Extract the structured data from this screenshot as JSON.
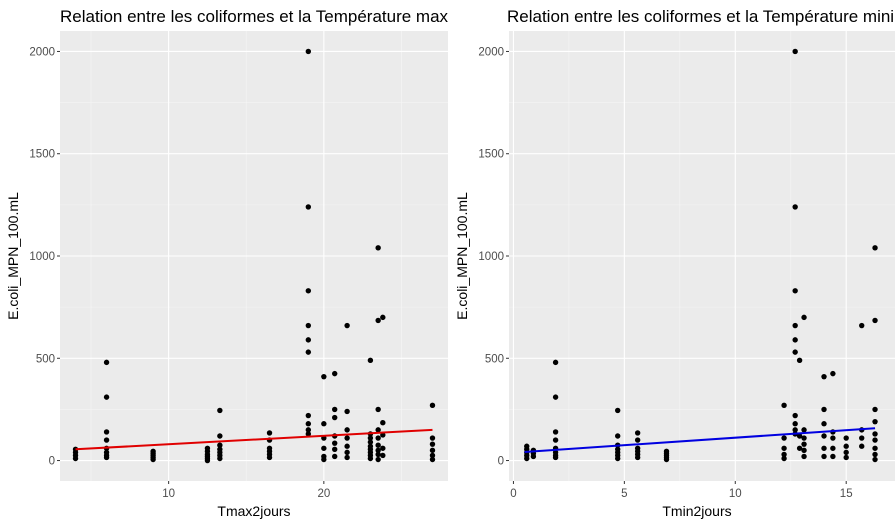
{
  "chart_data": [
    {
      "type": "scatter",
      "title": "Relation entre les coliformes et la Température maximale",
      "xlabel": "Tmax2jours",
      "ylabel": "E.coli_MPN_100.mL",
      "xlim": [
        3,
        28
      ],
      "ylim": [
        -100,
        2100
      ],
      "x_ticks": [
        10,
        20
      ],
      "y_ticks": [
        0,
        500,
        1000,
        1500,
        2000
      ],
      "grid": true,
      "background": "#ebebeb",
      "point_color": "#000000",
      "points": [
        [
          4,
          10
        ],
        [
          4,
          25
        ],
        [
          4,
          40
        ],
        [
          4,
          55
        ],
        [
          6,
          480
        ],
        [
          6,
          310
        ],
        [
          6,
          140
        ],
        [
          6,
          100
        ],
        [
          6,
          60
        ],
        [
          6,
          40
        ],
        [
          6,
          25
        ],
        [
          6,
          15
        ],
        [
          9,
          45
        ],
        [
          9,
          35
        ],
        [
          9,
          25
        ],
        [
          9,
          15
        ],
        [
          9,
          5
        ],
        [
          12.5,
          60
        ],
        [
          12.5,
          45
        ],
        [
          12.5,
          30
        ],
        [
          12.5,
          20
        ],
        [
          12.5,
          10
        ],
        [
          12.5,
          0
        ],
        [
          13.3,
          245
        ],
        [
          13.3,
          120
        ],
        [
          13.3,
          75
        ],
        [
          13.3,
          55
        ],
        [
          13.3,
          40
        ],
        [
          13.3,
          25
        ],
        [
          13.3,
          10
        ],
        [
          16.5,
          135
        ],
        [
          16.5,
          100
        ],
        [
          16.5,
          60
        ],
        [
          16.5,
          45
        ],
        [
          16.5,
          30
        ],
        [
          16.5,
          15
        ],
        [
          19,
          2000
        ],
        [
          19,
          1240
        ],
        [
          19,
          830
        ],
        [
          19,
          660
        ],
        [
          19,
          590
        ],
        [
          19,
          530
        ],
        [
          19,
          220
        ],
        [
          19,
          180
        ],
        [
          19,
          150
        ],
        [
          19,
          130
        ],
        [
          20,
          410
        ],
        [
          20,
          180
        ],
        [
          20,
          110
        ],
        [
          20,
          60
        ],
        [
          20,
          20
        ],
        [
          20,
          5
        ],
        [
          20.7,
          425
        ],
        [
          20.7,
          250
        ],
        [
          20.7,
          210
        ],
        [
          20.7,
          120
        ],
        [
          20.7,
          85
        ],
        [
          20.7,
          55
        ],
        [
          20.7,
          20
        ],
        [
          21.5,
          660
        ],
        [
          21.5,
          240
        ],
        [
          21.5,
          150
        ],
        [
          21.5,
          110
        ],
        [
          21.5,
          70
        ],
        [
          21.5,
          40
        ],
        [
          21.5,
          15
        ],
        [
          23,
          490
        ],
        [
          23,
          130
        ],
        [
          23,
          110
        ],
        [
          23,
          90
        ],
        [
          23,
          70
        ],
        [
          23,
          55
        ],
        [
          23,
          40
        ],
        [
          23,
          25
        ],
        [
          23,
          10
        ],
        [
          23.5,
          1040
        ],
        [
          23.5,
          685
        ],
        [
          23.5,
          250
        ],
        [
          23.5,
          150
        ],
        [
          23.5,
          110
        ],
        [
          23.5,
          75
        ],
        [
          23.5,
          50
        ],
        [
          23.5,
          30
        ],
        [
          23.5,
          5
        ],
        [
          23.8,
          700
        ],
        [
          23.8,
          185
        ],
        [
          23.8,
          125
        ],
        [
          23.8,
          60
        ],
        [
          23.8,
          25
        ],
        [
          27,
          270
        ],
        [
          27,
          110
        ],
        [
          27,
          80
        ],
        [
          27,
          50
        ],
        [
          27,
          25
        ],
        [
          27,
          5
        ]
      ],
      "trend_line": {
        "color": "#e00000",
        "x": [
          4,
          27
        ],
        "y": [
          55,
          150
        ]
      }
    },
    {
      "type": "scatter",
      "title": "Relation entre les coliformes et la Température minimale",
      "xlabel": "Tmin2jours",
      "ylabel": "E.coli_MPN_100.mL",
      "xlim": [
        -0.2,
        17.2
      ],
      "ylim": [
        -100,
        2100
      ],
      "x_ticks": [
        0,
        5,
        10,
        15
      ],
      "y_ticks": [
        0,
        500,
        1000,
        1500,
        2000
      ],
      "grid": true,
      "background": "#ebebeb",
      "point_color": "#000000",
      "points": [
        [
          0.6,
          10
        ],
        [
          0.6,
          25
        ],
        [
          0.6,
          40
        ],
        [
          0.6,
          55
        ],
        [
          0.6,
          70
        ],
        [
          0.9,
          20
        ],
        [
          0.9,
          35
        ],
        [
          0.9,
          50
        ],
        [
          1.9,
          480
        ],
        [
          1.9,
          310
        ],
        [
          1.9,
          140
        ],
        [
          1.9,
          100
        ],
        [
          1.9,
          60
        ],
        [
          1.9,
          40
        ],
        [
          1.9,
          25
        ],
        [
          1.9,
          15
        ],
        [
          4.7,
          245
        ],
        [
          4.7,
          120
        ],
        [
          4.7,
          75
        ],
        [
          4.7,
          55
        ],
        [
          4.7,
          40
        ],
        [
          4.7,
          25
        ],
        [
          4.7,
          10
        ],
        [
          5.6,
          135
        ],
        [
          5.6,
          100
        ],
        [
          5.6,
          60
        ],
        [
          5.6,
          45
        ],
        [
          5.6,
          30
        ],
        [
          5.6,
          15
        ],
        [
          6.9,
          45
        ],
        [
          6.9,
          35
        ],
        [
          6.9,
          25
        ],
        [
          6.9,
          15
        ],
        [
          6.9,
          5
        ],
        [
          12.2,
          270
        ],
        [
          12.2,
          110
        ],
        [
          12.2,
          60
        ],
        [
          12.2,
          30
        ],
        [
          12.2,
          10
        ],
        [
          12.7,
          2000
        ],
        [
          12.7,
          1240
        ],
        [
          12.7,
          830
        ],
        [
          12.7,
          660
        ],
        [
          12.7,
          590
        ],
        [
          12.7,
          530
        ],
        [
          12.7,
          220
        ],
        [
          12.7,
          180
        ],
        [
          12.7,
          150
        ],
        [
          12.7,
          130
        ],
        [
          12.9,
          490
        ],
        [
          12.9,
          120
        ],
        [
          12.9,
          60
        ],
        [
          13.1,
          700
        ],
        [
          13.1,
          150
        ],
        [
          13.1,
          110
        ],
        [
          13.1,
          80
        ],
        [
          13.1,
          50
        ],
        [
          13.1,
          20
        ],
        [
          14,
          410
        ],
        [
          14,
          250
        ],
        [
          14,
          180
        ],
        [
          14,
          120
        ],
        [
          14,
          60
        ],
        [
          14,
          20
        ],
        [
          14.4,
          425
        ],
        [
          14.4,
          140
        ],
        [
          14.4,
          110
        ],
        [
          14.4,
          60
        ],
        [
          14.4,
          20
        ],
        [
          15,
          110
        ],
        [
          15,
          70
        ],
        [
          15,
          40
        ],
        [
          15,
          15
        ],
        [
          15.7,
          660
        ],
        [
          15.7,
          150
        ],
        [
          15.7,
          110
        ],
        [
          15.7,
          70
        ],
        [
          16.3,
          1040
        ],
        [
          16.3,
          685
        ],
        [
          16.3,
          250
        ],
        [
          16.3,
          190
        ],
        [
          16.3,
          130
        ],
        [
          16.3,
          100
        ],
        [
          16.3,
          60
        ],
        [
          16.3,
          30
        ],
        [
          16.3,
          5
        ]
      ],
      "trend_line": {
        "color": "#0000e0",
        "x": [
          0.5,
          16.3
        ],
        "y": [
          42,
          158
        ]
      }
    }
  ]
}
